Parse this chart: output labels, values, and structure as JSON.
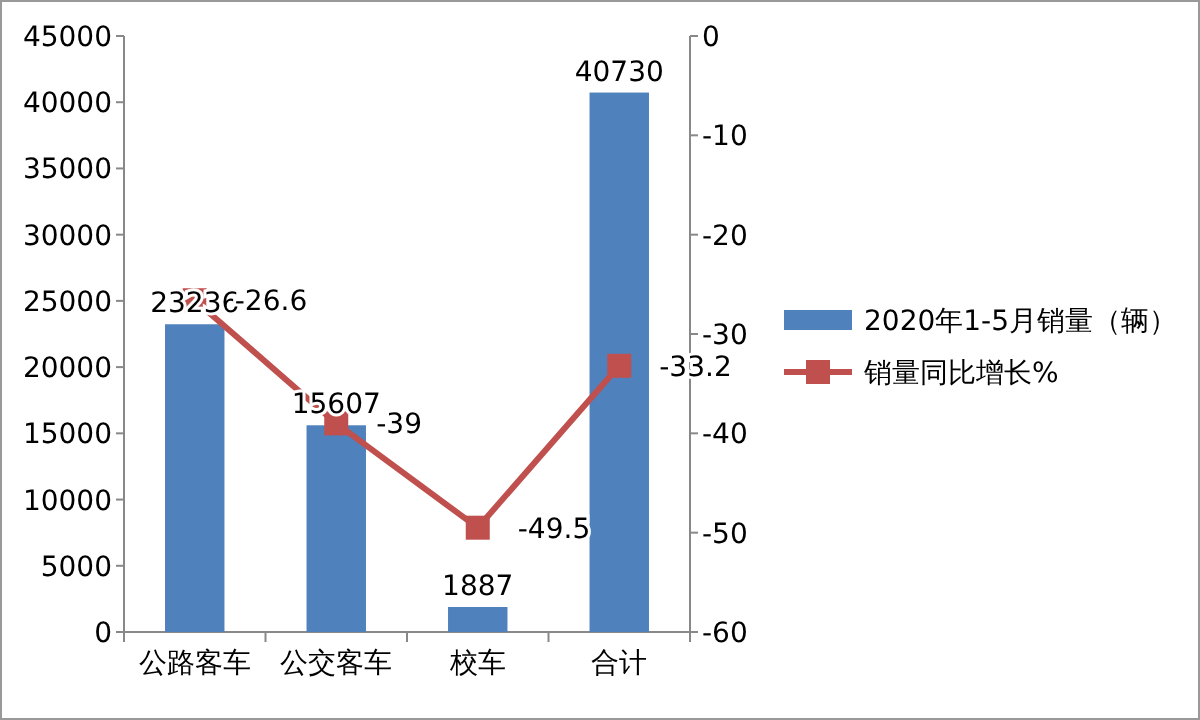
{
  "chart_data": {
    "type": "bar",
    "categories": [
      "公路客车",
      "公交客车",
      "校车",
      "合计"
    ],
    "series": [
      {
        "name": "2020年1-5月销量（辆）",
        "color": "#4f81bd",
        "values": [
          23236,
          15607,
          1887,
          40730
        ]
      },
      {
        "name": "销量同比增长%",
        "type": "line",
        "axis": "y2",
        "color": "#c0504d",
        "values": [
          -26.6,
          -39,
          -49.5,
          -33.2
        ]
      }
    ],
    "ylim": [
      0,
      45000
    ],
    "yticks": [
      0,
      5000,
      10000,
      15000,
      20000,
      25000,
      30000,
      35000,
      40000,
      45000
    ],
    "y2lim": [
      -60,
      0
    ],
    "y2ticks": [
      -60,
      -50,
      -40,
      -30,
      -20,
      -10,
      0
    ],
    "marker": "square",
    "legend": "right",
    "data_labels": true
  }
}
